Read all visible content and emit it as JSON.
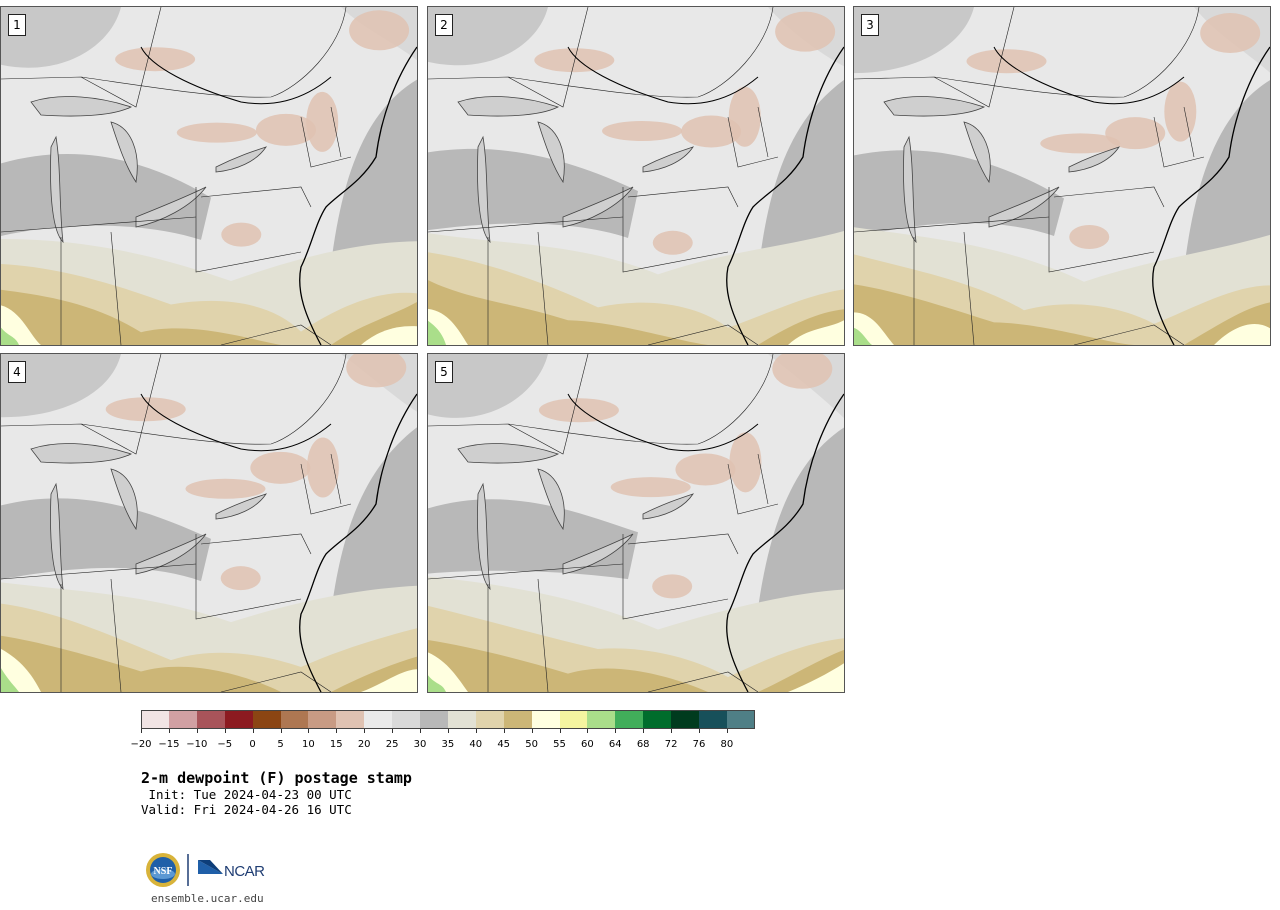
{
  "panels": [
    {
      "label": "1",
      "seed": 1
    },
    {
      "label": "2",
      "seed": 2
    },
    {
      "label": "3",
      "seed": 3
    },
    {
      "label": "4",
      "seed": 4
    },
    {
      "label": "5",
      "seed": 5
    }
  ],
  "colorbar": {
    "ticks": [
      "−20",
      "−15",
      "−10",
      "−5",
      "0",
      "5",
      "10",
      "15",
      "20",
      "25",
      "30",
      "35",
      "40",
      "45",
      "50",
      "55",
      "60",
      "64",
      "68",
      "72",
      "76",
      "80"
    ],
    "colors": [
      "#f1e4e4",
      "#d1a0a3",
      "#a8545a",
      "#8c1a20",
      "#8b4513",
      "#ae7752",
      "#c89b84",
      "#dfc2b2",
      "#eaeaea",
      "#d9d9d9",
      "#b8b8b8",
      "#e2e1d4",
      "#e0d3ac",
      "#ccb677",
      "#ffffe0",
      "#f5f5a0",
      "#aade8a",
      "#41ae5a",
      "#006d2c",
      "#003b1e",
      "#17505a",
      "#4f7f86"
    ]
  },
  "title": "2-m dewpoint (F) postage stamp",
  "init": " Init: Tue 2024-04-23 00 UTC",
  "valid": "Valid: Fri 2024-04-26 16 UTC",
  "logo": {
    "nsf": "NSF",
    "ncar": "NCAR"
  },
  "site": "ensemble.ucar.edu"
}
